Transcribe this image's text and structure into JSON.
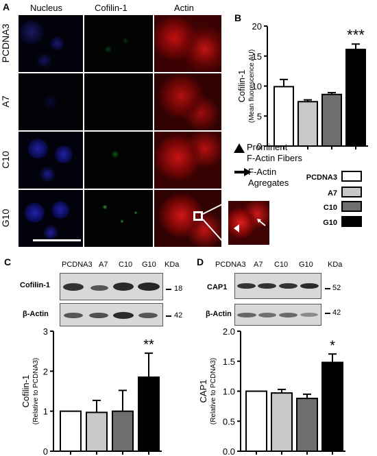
{
  "panel_A": {
    "label": "A",
    "columns": [
      "Nucleus",
      "Cofilin-1",
      "Actin"
    ],
    "rows": [
      "PCDNA3",
      "A7",
      "C10",
      "G10"
    ]
  },
  "panel_B": {
    "label": "B",
    "legend_prominent": "Prominent\nF-Actin Fibers",
    "legend_aggregates": "F-Actin\nAgregates",
    "groups": [
      {
        "name": "PCDNA3",
        "color": "#ffffff"
      },
      {
        "name": "A7",
        "color": "#c8c8c8"
      },
      {
        "name": "C10",
        "color": "#6e6e6e"
      },
      {
        "name": "G10",
        "color": "#000000"
      }
    ]
  },
  "panel_C": {
    "label": "C",
    "lanes": [
      "PCDNA3",
      "A7",
      "C10",
      "G10"
    ],
    "kda_header": "KDa",
    "blots": [
      {
        "name": "Cofilin-1",
        "kda": "18"
      },
      {
        "name": "β-Actin",
        "kda": "42"
      }
    ]
  },
  "panel_D": {
    "label": "D",
    "lanes": [
      "PCDNA3",
      "A7",
      "C10",
      "G10"
    ],
    "kda_header": "KDa",
    "blots": [
      {
        "name": "CAP1",
        "kda": "52"
      },
      {
        "name": "β-Actin",
        "kda": "42"
      }
    ]
  },
  "chart_data": [
    {
      "id": "B",
      "type": "bar",
      "categories": [
        "PCDNA3",
        "A7",
        "C10",
        "G10"
      ],
      "values": [
        9.9,
        7.4,
        8.6,
        16.1
      ],
      "errors": [
        1.2,
        0.3,
        0.3,
        0.9
      ],
      "colors": [
        "#ffffff",
        "#c8c8c8",
        "#6e6e6e",
        "#000000"
      ],
      "ylabel": "Cofilin-1",
      "ylabel_sub": "(Mean fluorescence AU)",
      "ylim": [
        0,
        20
      ],
      "yticks": [
        "0",
        "5",
        "10",
        "15",
        "20"
      ],
      "annotations": [
        {
          "index": 3,
          "text": "***"
        }
      ]
    },
    {
      "id": "C",
      "type": "bar",
      "categories": [
        "PCDNA3",
        "A7",
        "C10",
        "G10"
      ],
      "values": [
        1.0,
        0.97,
        1.0,
        1.85
      ],
      "errors": [
        0,
        0.3,
        0.52,
        0.6
      ],
      "colors": [
        "#ffffff",
        "#c8c8c8",
        "#6e6e6e",
        "#000000"
      ],
      "ylabel": "Cofilin-1",
      "ylabel_sub": "(Relative to PCDNA3)",
      "ylim": [
        0,
        3
      ],
      "yticks": [
        "0",
        "1",
        "2",
        "3"
      ],
      "annotations": [
        {
          "index": 3,
          "text": "**"
        }
      ]
    },
    {
      "id": "D",
      "type": "bar",
      "categories": [
        "PCDNA3",
        "A7",
        "C10",
        "G10"
      ],
      "values": [
        1.0,
        0.97,
        0.88,
        1.48
      ],
      "errors": [
        0,
        0.06,
        0.07,
        0.14
      ],
      "colors": [
        "#ffffff",
        "#c8c8c8",
        "#6e6e6e",
        "#000000"
      ],
      "ylabel": "CAP1",
      "ylabel_sub": "(Relative to PCDNA3)",
      "ylim": [
        0,
        2.0
      ],
      "yticks": [
        "0.0",
        "0.5",
        "1.0",
        "1.5",
        "2.0"
      ],
      "annotations": [
        {
          "index": 3,
          "text": "*"
        }
      ]
    }
  ]
}
